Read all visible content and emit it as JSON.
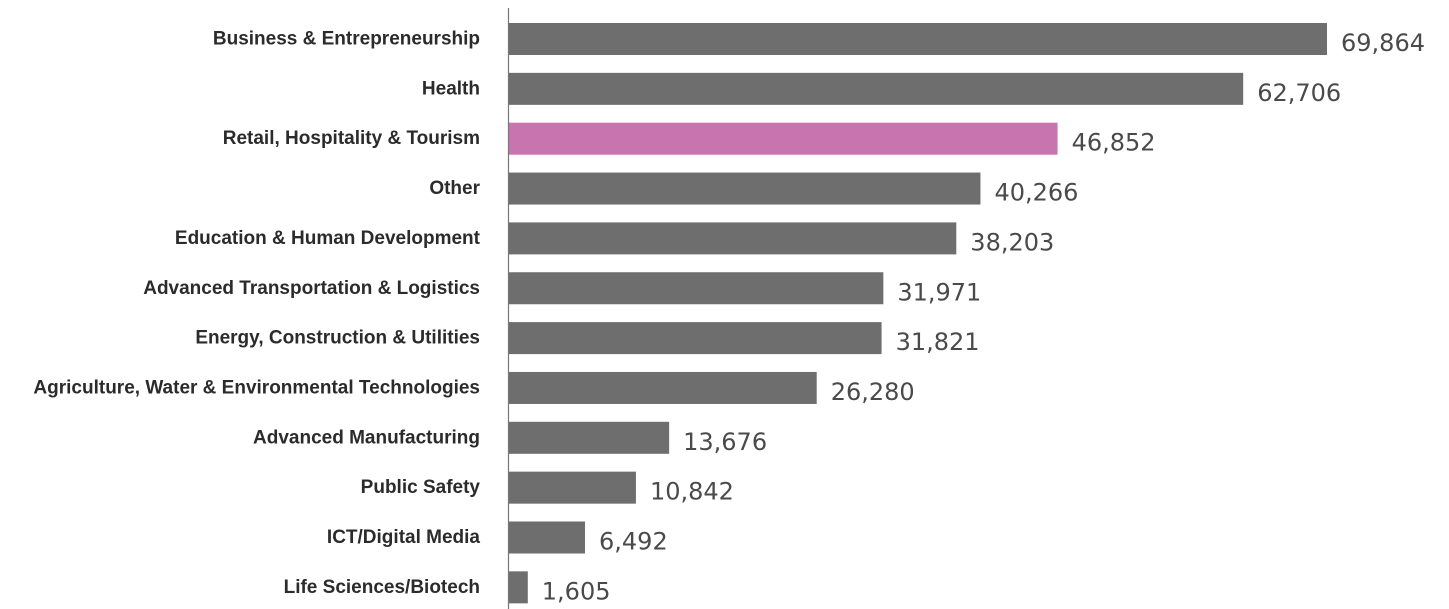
{
  "chart_data": {
    "type": "bar",
    "orientation": "horizontal",
    "categories": [
      "Business & Entrepreneurship",
      "Health",
      "Retail, Hospitality & Tourism",
      "Other",
      "Education & Human Development",
      "Advanced Transportation & Logistics",
      "Energy, Construction & Utilities",
      "Agriculture, Water & Environmental Technologies",
      "Advanced Manufacturing",
      "Public Safety",
      "ICT/Digital Media",
      "Life Sciences/Biotech"
    ],
    "values": [
      69864,
      62706,
      46852,
      40266,
      38203,
      31971,
      31821,
      26280,
      13676,
      10842,
      6492,
      1605
    ],
    "value_labels": [
      "69,864",
      "62,706",
      "46,852",
      "40,266",
      "38,203",
      "31,971",
      "31,821",
      "26,280",
      "13,676",
      "10,842",
      "6,492",
      "1,605"
    ],
    "highlight_index": 2,
    "xlim": [
      0,
      69864
    ],
    "grid": false,
    "legend": "none",
    "colors": {
      "bar": "#6d6e6d",
      "highlight": "#c874ae",
      "axis": "#777777"
    }
  }
}
